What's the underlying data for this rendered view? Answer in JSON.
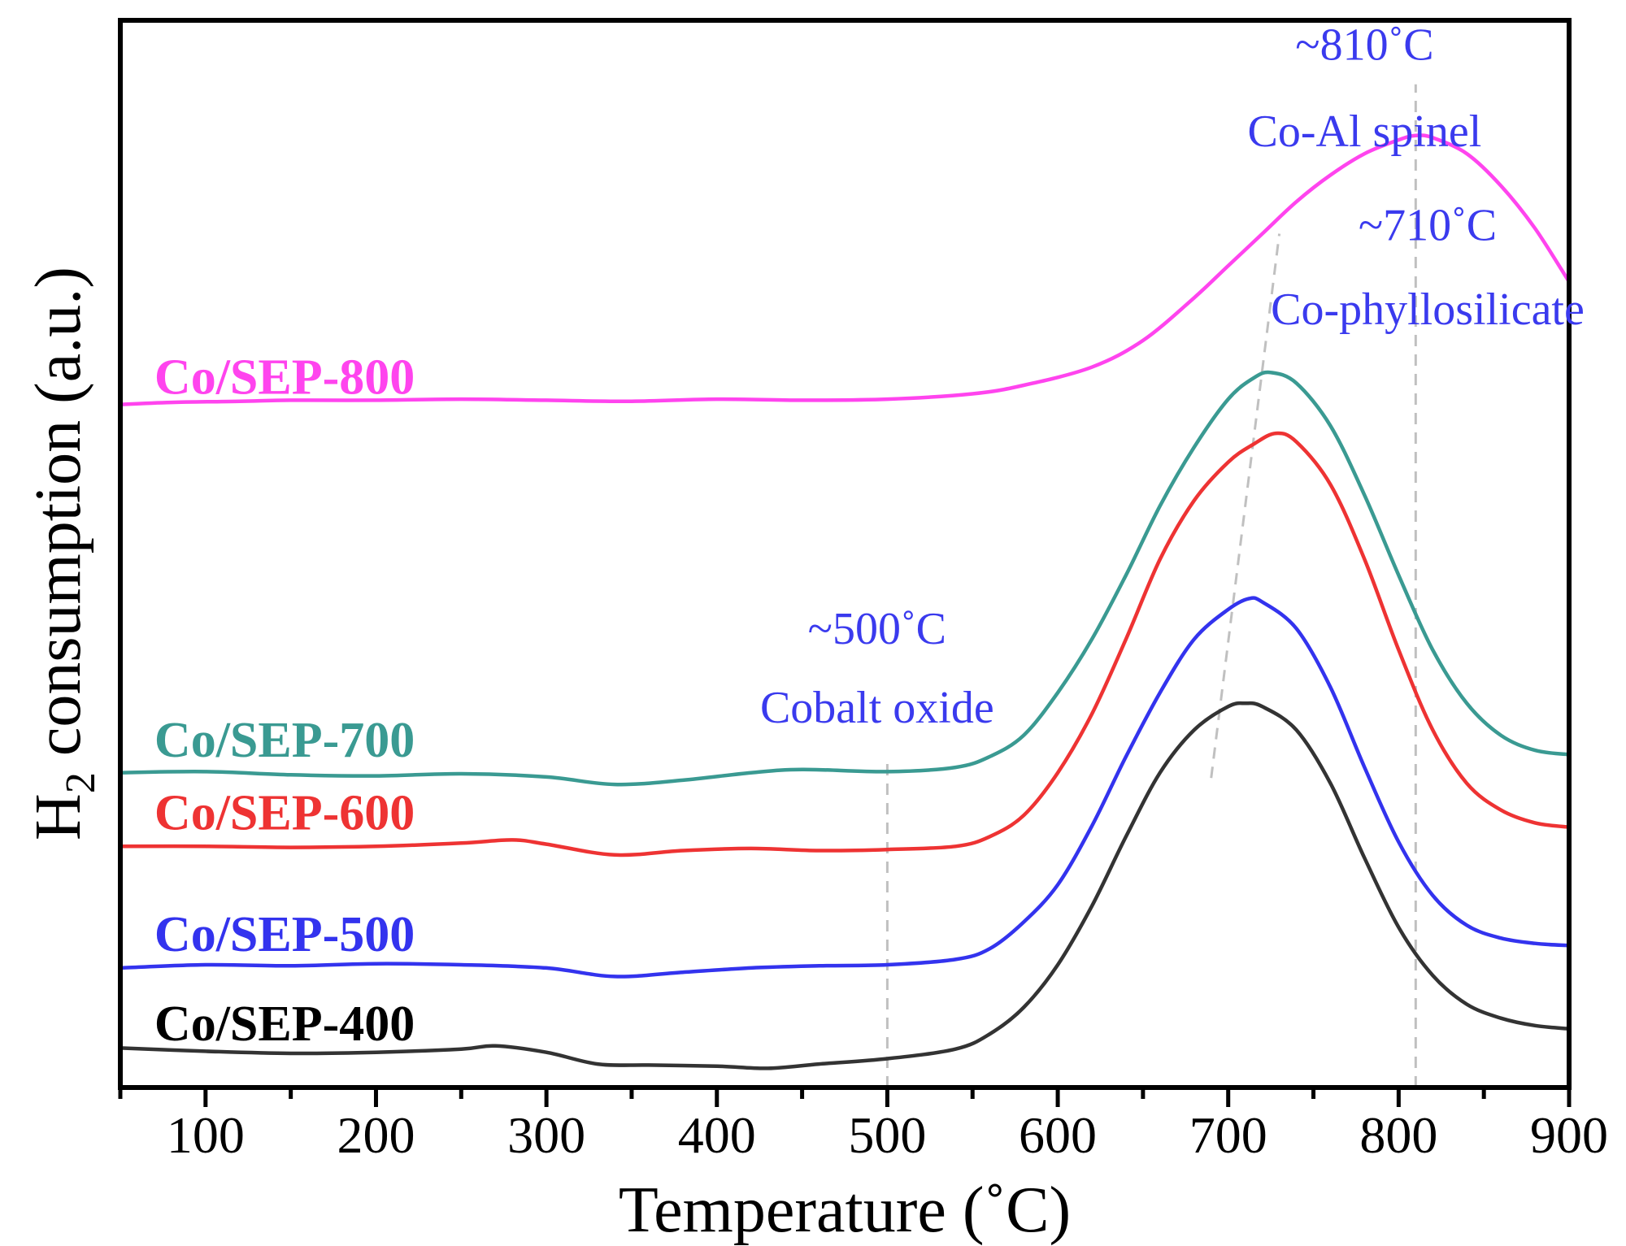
{
  "chart_data": {
    "type": "line",
    "xlabel": "Temperature (˚C)",
    "ylabel_main": "H",
    "ylabel_sub": "2",
    "ylabel_rest": " consumption (a.u.)",
    "xlim": [
      50,
      900
    ],
    "ylim": [
      0,
      100
    ],
    "xticks": [
      100,
      200,
      300,
      400,
      500,
      600,
      700,
      800,
      900
    ],
    "yticks_shown": false,
    "series": [
      {
        "name": "Co/SEP-800",
        "color": "#ff44ee",
        "points": [
          [
            50,
            64
          ],
          [
            80,
            64.2
          ],
          [
            120,
            64.3
          ],
          [
            150,
            64.4
          ],
          [
            200,
            64.4
          ],
          [
            250,
            64.5
          ],
          [
            300,
            64.4
          ],
          [
            350,
            64.3
          ],
          [
            400,
            64.5
          ],
          [
            450,
            64.4
          ],
          [
            500,
            64.5
          ],
          [
            550,
            65
          ],
          [
            580,
            65.8
          ],
          [
            620,
            67.5
          ],
          [
            650,
            70
          ],
          [
            680,
            74
          ],
          [
            700,
            77
          ],
          [
            720,
            80
          ],
          [
            740,
            83
          ],
          [
            760,
            85.5
          ],
          [
            780,
            87.5
          ],
          [
            800,
            88.8
          ],
          [
            810,
            89.2
          ],
          [
            820,
            89
          ],
          [
            840,
            87.5
          ],
          [
            860,
            84.5
          ],
          [
            880,
            80.5
          ],
          [
            900,
            75.5
          ]
        ]
      },
      {
        "name": "Co/SEP-700",
        "color": "#3a9a92",
        "points": [
          [
            50,
            29.5
          ],
          [
            100,
            29.6
          ],
          [
            150,
            29.3
          ],
          [
            200,
            29.2
          ],
          [
            250,
            29.4
          ],
          [
            300,
            29.1
          ],
          [
            340,
            28.4
          ],
          [
            380,
            28.8
          ],
          [
            420,
            29.5
          ],
          [
            450,
            29.8
          ],
          [
            500,
            29.6
          ],
          [
            540,
            30
          ],
          [
            560,
            31
          ],
          [
            580,
            33
          ],
          [
            600,
            37
          ],
          [
            620,
            42
          ],
          [
            640,
            48
          ],
          [
            660,
            54.5
          ],
          [
            680,
            60
          ],
          [
            700,
            64.5
          ],
          [
            715,
            66.5
          ],
          [
            725,
            67
          ],
          [
            740,
            66
          ],
          [
            760,
            62
          ],
          [
            780,
            55.5
          ],
          [
            800,
            48
          ],
          [
            820,
            41
          ],
          [
            840,
            36
          ],
          [
            860,
            33
          ],
          [
            880,
            31.6
          ],
          [
            900,
            31.2
          ]
        ]
      },
      {
        "name": "Co/SEP-600",
        "color": "#ee3333",
        "points": [
          [
            50,
            22.6
          ],
          [
            100,
            22.6
          ],
          [
            150,
            22.5
          ],
          [
            200,
            22.6
          ],
          [
            250,
            22.9
          ],
          [
            280,
            23.2
          ],
          [
            300,
            22.8
          ],
          [
            340,
            21.8
          ],
          [
            380,
            22.2
          ],
          [
            420,
            22.4
          ],
          [
            460,
            22.2
          ],
          [
            500,
            22.3
          ],
          [
            540,
            22.6
          ],
          [
            560,
            23.5
          ],
          [
            580,
            25.5
          ],
          [
            600,
            29.5
          ],
          [
            620,
            35
          ],
          [
            640,
            42
          ],
          [
            660,
            49.5
          ],
          [
            680,
            55
          ],
          [
            700,
            58.6
          ],
          [
            715,
            60.3
          ],
          [
            728,
            61.3
          ],
          [
            740,
            60.5
          ],
          [
            760,
            56.5
          ],
          [
            780,
            49.5
          ],
          [
            800,
            41
          ],
          [
            820,
            33.5
          ],
          [
            840,
            28.5
          ],
          [
            860,
            26
          ],
          [
            880,
            24.8
          ],
          [
            900,
            24.4
          ]
        ]
      },
      {
        "name": "Co/SEP-500",
        "color": "#3333ee",
        "points": [
          [
            50,
            11.2
          ],
          [
            100,
            11.5
          ],
          [
            150,
            11.4
          ],
          [
            200,
            11.6
          ],
          [
            250,
            11.5
          ],
          [
            300,
            11.2
          ],
          [
            340,
            10.4
          ],
          [
            380,
            10.8
          ],
          [
            420,
            11.2
          ],
          [
            460,
            11.4
          ],
          [
            500,
            11.5
          ],
          [
            540,
            12
          ],
          [
            560,
            13
          ],
          [
            580,
            15.5
          ],
          [
            600,
            19
          ],
          [
            620,
            24.5
          ],
          [
            640,
            31
          ],
          [
            660,
            37
          ],
          [
            680,
            42
          ],
          [
            700,
            44.8
          ],
          [
            712,
            45.8
          ],
          [
            720,
            45.5
          ],
          [
            740,
            43
          ],
          [
            760,
            37.5
          ],
          [
            780,
            30
          ],
          [
            800,
            23
          ],
          [
            820,
            18
          ],
          [
            840,
            15.2
          ],
          [
            860,
            14
          ],
          [
            880,
            13.5
          ],
          [
            900,
            13.3
          ]
        ]
      },
      {
        "name": "Co/SEP-400",
        "color": "#333333",
        "points": [
          [
            50,
            3.7
          ],
          [
            100,
            3.4
          ],
          [
            150,
            3.2
          ],
          [
            200,
            3.3
          ],
          [
            250,
            3.6
          ],
          [
            270,
            3.9
          ],
          [
            300,
            3.3
          ],
          [
            330,
            2.2
          ],
          [
            360,
            2.1
          ],
          [
            400,
            2
          ],
          [
            430,
            1.8
          ],
          [
            460,
            2.2
          ],
          [
            500,
            2.7
          ],
          [
            540,
            3.6
          ],
          [
            560,
            5
          ],
          [
            580,
            7.5
          ],
          [
            600,
            11.5
          ],
          [
            620,
            17
          ],
          [
            640,
            23.5
          ],
          [
            660,
            29.5
          ],
          [
            680,
            33.5
          ],
          [
            700,
            35.7
          ],
          [
            710,
            36
          ],
          [
            720,
            35.7
          ],
          [
            740,
            33.5
          ],
          [
            760,
            28.5
          ],
          [
            780,
            21.5
          ],
          [
            800,
            15
          ],
          [
            820,
            10.5
          ],
          [
            840,
            7.8
          ],
          [
            860,
            6.5
          ],
          [
            880,
            5.8
          ],
          [
            900,
            5.5
          ]
        ]
      }
    ],
    "series_labels": [
      {
        "text": "Co/SEP-800",
        "x": 70,
        "y": 65,
        "color": "#ff44ee"
      },
      {
        "text": "Co/SEP-700",
        "x": 70,
        "y": 31,
        "color": "#3a9a92"
      },
      {
        "text": "Co/SEP-600",
        "x": 70,
        "y": 24.2,
        "color": "#ee3333"
      },
      {
        "text": "Co/SEP-500",
        "x": 70,
        "y": 12.8,
        "color": "#3333ee"
      },
      {
        "text": "Co/SEP-400",
        "x": 70,
        "y": 4.4,
        "color": "#000000"
      }
    ],
    "annotations": [
      {
        "text": "~810˚C",
        "x": 780,
        "y": 96.3
      },
      {
        "text": "Co-Al spinel",
        "x": 780,
        "y": 88.2
      },
      {
        "text": "~710˚C",
        "x": 817,
        "y": 79.4
      },
      {
        "text": "Co-phyllosilicate",
        "x": 817,
        "y": 71.5
      },
      {
        "text": "~500˚C",
        "x": 494,
        "y": 41.6
      },
      {
        "text": "Cobalt oxide",
        "x": 494,
        "y": 34.2
      }
    ],
    "guide_lines": [
      {
        "x1": 500,
        "y1": 0,
        "x2": 500,
        "y2": 31
      },
      {
        "x1": 690,
        "y1": 29,
        "x2": 730,
        "y2": 80
      },
      {
        "x1": 810,
        "y1": 0,
        "x2": 810,
        "y2": 94
      }
    ]
  }
}
